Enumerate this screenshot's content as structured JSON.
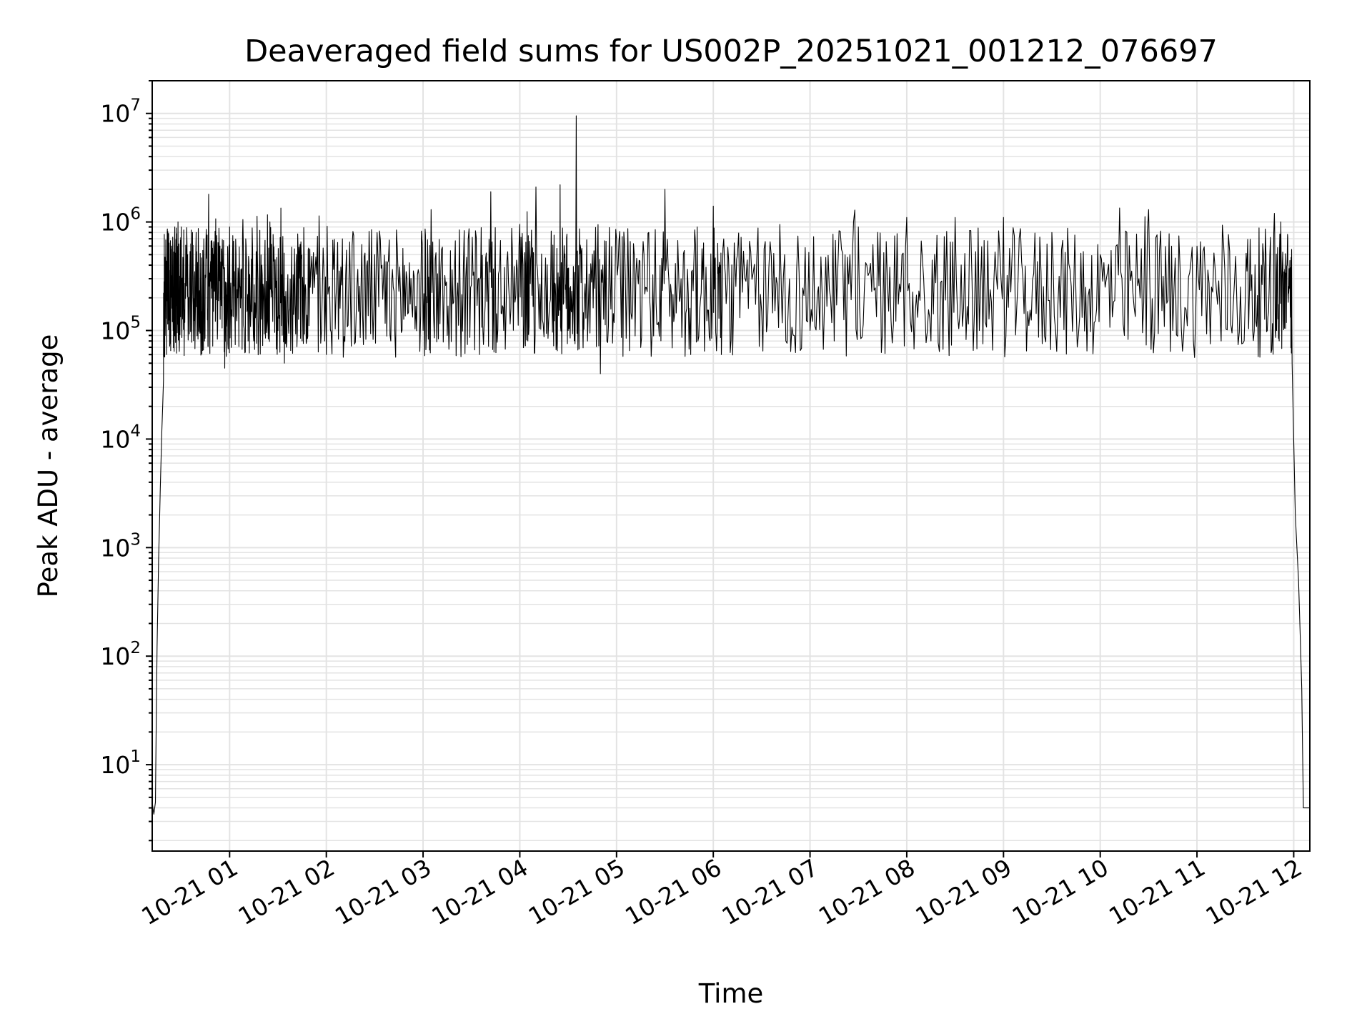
{
  "chart_data": {
    "type": "line",
    "title": "Deaveraged field sums for US002P_20251021_001212_076697",
    "xlabel": "Time",
    "ylabel": "Peak ADU - average",
    "yscale": "log",
    "ylim": [
      1.6,
      20000000
    ],
    "xlim": [
      "2025-10-21 00:12",
      "2025-10-21 12:10"
    ],
    "grid": true,
    "line_color": "#000000",
    "x_ticks": [
      {
        "t": "2025-10-21 01:00",
        "label": "10-21 01"
      },
      {
        "t": "2025-10-21 02:00",
        "label": "10-21 02"
      },
      {
        "t": "2025-10-21 03:00",
        "label": "10-21 03"
      },
      {
        "t": "2025-10-21 04:00",
        "label": "10-21 04"
      },
      {
        "t": "2025-10-21 05:00",
        "label": "10-21 05"
      },
      {
        "t": "2025-10-21 06:00",
        "label": "10-21 06"
      },
      {
        "t": "2025-10-21 07:00",
        "label": "10-21 07"
      },
      {
        "t": "2025-10-21 08:00",
        "label": "10-21 08"
      },
      {
        "t": "2025-10-21 09:00",
        "label": "10-21 09"
      },
      {
        "t": "2025-10-21 10:00",
        "label": "10-21 10"
      },
      {
        "t": "2025-10-21 11:00",
        "label": "10-21 11"
      },
      {
        "t": "2025-10-21 12:00",
        "label": "10-21 12"
      }
    ],
    "y_ticks": [
      {
        "value": 10,
        "base": "10",
        "exp": "1"
      },
      {
        "value": 100,
        "base": "10",
        "exp": "2"
      },
      {
        "value": 1000,
        "base": "10",
        "exp": "3"
      },
      {
        "value": 10000,
        "base": "10",
        "exp": "4"
      },
      {
        "value": 100000,
        "base": "10",
        "exp": "5"
      },
      {
        "value": 1000000,
        "base": "10",
        "exp": "6"
      },
      {
        "value": 10000000,
        "base": "10",
        "exp": "7"
      }
    ],
    "series": [
      {
        "points": [
          [
            "2025-10-21 00:12",
            4.5
          ],
          [
            "2025-10-21 00:13",
            3.5
          ],
          [
            "2025-10-21 00:14",
            4.5
          ],
          [
            "2025-10-21 00:15",
            120
          ],
          [
            "2025-10-21 00:16",
            800
          ],
          [
            "2025-10-21 00:17",
            3500
          ],
          [
            "2025-10-21 00:18",
            12000
          ],
          [
            "2025-10-21 00:19",
            35000
          ],
          [
            "2025-10-21 00:20",
            90000
          ],
          [
            "2025-10-21 00:22",
            250000
          ],
          [
            "2025-10-21 00:24",
            600000
          ],
          [
            "2025-10-21 00:26",
            900000
          ],
          [
            "2025-10-21 00:28",
            1000000
          ],
          [
            "2025-10-21 00:30",
            900000
          ],
          [
            "2025-10-21 00:34",
            500000
          ],
          [
            "2025-10-21 00:37",
            800000
          ],
          [
            "2025-10-21 00:40",
            200000
          ],
          [
            "2025-10-21 00:44",
            700000
          ],
          [
            "2025-10-21 00:47",
            1800000
          ],
          [
            "2025-10-21 00:50",
            150000
          ],
          [
            "2025-10-21 00:54",
            600000
          ],
          [
            "2025-10-21 00:57",
            45000
          ],
          [
            "2025-10-21 01:00",
            900000
          ],
          [
            "2025-10-21 01:05",
            200000
          ],
          [
            "2025-10-21 01:10",
            700000
          ],
          [
            "2025-10-21 01:15",
            80000
          ],
          [
            "2025-10-21 01:20",
            400000
          ],
          [
            "2025-10-21 01:25",
            1000000
          ],
          [
            "2025-10-21 01:30",
            100000
          ],
          [
            "2025-10-21 01:34",
            50000
          ],
          [
            "2025-10-21 01:40",
            300000
          ],
          [
            "2025-10-21 01:45",
            80000
          ],
          [
            "2025-10-21 01:50",
            250000
          ],
          [
            "2025-10-21 02:00",
            60000
          ],
          [
            "2025-10-21 02:10",
            700000
          ],
          [
            "2025-10-21 02:20",
            150000
          ],
          [
            "2025-10-21 02:30",
            500000
          ],
          [
            "2025-10-21 02:40",
            80000
          ],
          [
            "2025-10-21 02:50",
            300000
          ],
          [
            "2025-10-21 03:00",
            100000
          ],
          [
            "2025-10-21 03:05",
            1300000
          ],
          [
            "2025-10-21 03:15",
            90000
          ],
          [
            "2025-10-21 03:25",
            400000
          ],
          [
            "2025-10-21 03:35",
            60000
          ],
          [
            "2025-10-21 03:42",
            1900000
          ],
          [
            "2025-10-21 03:50",
            100000
          ],
          [
            "2025-10-21 04:00",
            950000
          ],
          [
            "2025-10-21 04:05",
            80000
          ],
          [
            "2025-10-21 04:10",
            2100000
          ],
          [
            "2025-10-21 04:20",
            150000
          ],
          [
            "2025-10-21 04:25",
            2200000
          ],
          [
            "2025-10-21 04:30",
            100000
          ],
          [
            "2025-10-21 04:35",
            9500000
          ],
          [
            "2025-10-21 04:40",
            200000
          ],
          [
            "2025-10-21 04:50",
            40000
          ],
          [
            "2025-10-21 05:00",
            700000
          ],
          [
            "2025-10-21 05:10",
            150000
          ],
          [
            "2025-10-21 05:20",
            800000
          ],
          [
            "2025-10-21 05:30",
            2000000
          ],
          [
            "2025-10-21 05:40",
            300000
          ],
          [
            "2025-10-21 05:50",
            900000
          ],
          [
            "2025-10-21 06:00",
            1400000
          ],
          [
            "2025-10-21 06:05",
            60000
          ],
          [
            "2025-10-21 06:15",
            500000
          ],
          [
            "2025-10-21 06:30",
            150000
          ],
          [
            "2025-10-21 06:45",
            80000
          ],
          [
            "2025-10-21 07:00",
            100000
          ],
          [
            "2025-10-21 07:15",
            80000
          ],
          [
            "2025-10-21 07:30",
            900000
          ],
          [
            "2025-10-21 07:45",
            100000
          ],
          [
            "2025-10-21 08:00",
            1100000
          ],
          [
            "2025-10-21 08:15",
            80000
          ],
          [
            "2025-10-21 08:30",
            1100000
          ],
          [
            "2025-10-21 08:45",
            100000
          ],
          [
            "2025-10-21 09:00",
            1100000
          ],
          [
            "2025-10-21 09:15",
            150000
          ],
          [
            "2025-10-21 09:30",
            800000
          ],
          [
            "2025-10-21 09:45",
            200000
          ],
          [
            "2025-10-21 10:00",
            500000
          ],
          [
            "2025-10-21 10:15",
            90000
          ],
          [
            "2025-10-21 10:30",
            1300000
          ],
          [
            "2025-10-21 10:45",
            100000
          ],
          [
            "2025-10-21 11:00",
            600000
          ],
          [
            "2025-10-21 11:15",
            80000
          ],
          [
            "2025-10-21 11:30",
            200000
          ],
          [
            "2025-10-21 11:40",
            400000
          ],
          [
            "2025-10-21 11:48",
            1200000
          ],
          [
            "2025-10-21 11:52",
            1000000
          ],
          [
            "2025-10-21 11:56",
            500000
          ],
          [
            "2025-10-21 11:59",
            50000
          ],
          [
            "2025-10-21 12:01",
            2000
          ],
          [
            "2025-10-21 12:03",
            500
          ],
          [
            "2025-10-21 12:05",
            50
          ],
          [
            "2025-10-21 12:06",
            4
          ],
          [
            "2025-10-21 12:10",
            4
          ]
        ]
      }
    ]
  }
}
